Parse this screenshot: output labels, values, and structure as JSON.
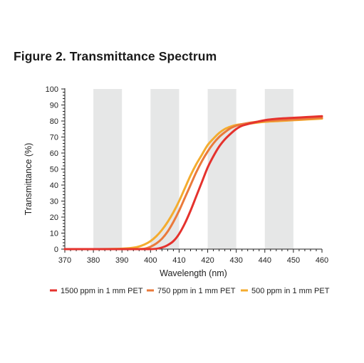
{
  "figure_title": "Figure 2. Transmittance Spectrum",
  "chart_data": {
    "type": "line",
    "title": "",
    "xlabel": "Wavelength (nm)",
    "ylabel": "Transmittance (%)",
    "xlim": [
      370,
      460
    ],
    "ylim": [
      0,
      100
    ],
    "x_ticks": [
      "370",
      "380",
      "390",
      "400",
      "410",
      "420",
      "430",
      "440",
      "450",
      "460"
    ],
    "y_ticks": [
      "0",
      "10",
      "20",
      "30",
      "40",
      "50",
      "60",
      "70",
      "80",
      "90",
      "100"
    ],
    "shaded_bands": [
      [
        380,
        390
      ],
      [
        400,
        410
      ],
      [
        420,
        430
      ],
      [
        440,
        450
      ]
    ],
    "band_color": "#e6e7e7",
    "legend_position": "bottom",
    "series": [
      {
        "name": "1500 ppm in 1 mm PET",
        "color": "#e5322d",
        "x": [
          370,
          380,
          390,
          395,
          400,
          402,
          404,
          406,
          408,
          410,
          412,
          414,
          416,
          418,
          420,
          422,
          424,
          426,
          428,
          430,
          432,
          435,
          440,
          445,
          450,
          455,
          460
        ],
        "y": [
          0,
          0,
          0,
          0,
          0,
          0.2,
          1.0,
          2.5,
          5.0,
          9.5,
          16,
          24,
          33,
          42,
          51,
          58,
          64,
          68.5,
          72,
          75,
          77,
          78.5,
          80.5,
          81.5,
          82,
          82.5,
          83
        ]
      },
      {
        "name": "750 ppm in 1 mm PET",
        "color": "#ea7a3b",
        "x": [
          370,
          380,
          390,
          395,
          398,
          400,
          402,
          404,
          406,
          408,
          410,
          412,
          414,
          416,
          418,
          420,
          422,
          424,
          426,
          428,
          430,
          432,
          435,
          440,
          445,
          450,
          455,
          460
        ],
        "y": [
          0,
          0,
          0,
          0,
          0.3,
          1.5,
          3.5,
          6.5,
          11,
          17,
          24,
          32,
          40,
          48,
          55,
          61,
          66,
          70,
          73,
          75.5,
          77,
          78,
          79,
          80,
          80.5,
          81,
          81.5,
          82
        ]
      },
      {
        "name": "500 ppm in 1 mm PET",
        "color": "#f4ac2f",
        "x": [
          370,
          380,
          390,
          395,
          398,
          400,
          402,
          404,
          406,
          408,
          410,
          412,
          414,
          416,
          418,
          420,
          422,
          424,
          426,
          428,
          430,
          432,
          435,
          440,
          445,
          450,
          455,
          460
        ],
        "y": [
          0,
          0,
          0.3,
          1.2,
          3.0,
          5.0,
          8.0,
          12,
          17,
          23,
          30,
          38,
          46,
          53,
          59,
          65,
          69,
          72.5,
          75,
          76.5,
          77.5,
          78,
          78.5,
          79.5,
          80,
          80.5,
          81,
          81.5
        ]
      }
    ]
  }
}
